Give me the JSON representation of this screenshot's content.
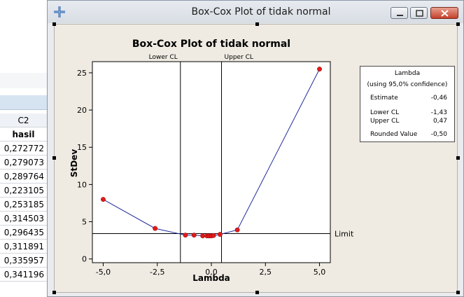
{
  "worksheet": {
    "col_id": "C2",
    "col_name": "hasil",
    "rows": [
      "0,272772",
      "0,279073",
      "0,289764",
      "0,223105",
      "0,253185",
      "0,314503",
      "0,296435",
      "0,311891",
      "0,335957",
      "0,341196"
    ]
  },
  "window": {
    "title": "Box-Cox Plot of tidak normal",
    "app_icon": "minitab-graph-icon",
    "buttons": [
      "minimize-icon",
      "restore-icon",
      "close-icon"
    ]
  },
  "colors": {
    "line": "#1f2a9c",
    "point": "#e01b1b",
    "panel": "#efebe3"
  },
  "chart_data": {
    "type": "line",
    "title": "Box-Cox Plot of tidak normal",
    "xlabel": "Lambda",
    "ylabel": "StDev",
    "xlim": [
      -5.5,
      5.5
    ],
    "ylim": [
      -0.5,
      26.5
    ],
    "xticks": [
      -5.0,
      -2.5,
      0.0,
      2.5,
      5.0
    ],
    "xtick_labels": [
      "-5,0",
      "-2,5",
      "0,0",
      "2,5",
      "5,0"
    ],
    "yticks": [
      0,
      5,
      10,
      15,
      20,
      25
    ],
    "ytick_labels": [
      "0",
      "5",
      "10",
      "15",
      "20",
      "25"
    ],
    "series": [
      {
        "x": [
          -5.0,
          -2.6,
          -1.2,
          -0.8,
          -0.4,
          -0.2,
          -0.1,
          0.0,
          0.1,
          0.4,
          1.2,
          5.0
        ],
        "y": [
          8.0,
          4.1,
          3.2,
          3.2,
          3.1,
          3.1,
          3.1,
          3.1,
          3.15,
          3.3,
          3.9,
          25.5
        ]
      }
    ],
    "limit": {
      "y": 3.4,
      "label": "Limit"
    },
    "ci_lines": [
      {
        "x": -1.43,
        "label": "Lower CL"
      },
      {
        "x": 0.47,
        "label": "Upper CL"
      }
    ],
    "legend": {
      "title": "Lambda",
      "subtitle": "(using 95,0% confidence)",
      "estimate_label": "Estimate",
      "estimate": "-0,46",
      "lower_label": "Lower CL",
      "lower": "-1,43",
      "upper_label": "Upper CL",
      "upper": "0,47",
      "rounded_label": "Rounded Value",
      "rounded": "-0,50"
    },
    "grid": false,
    "legend_position": "top-right"
  }
}
